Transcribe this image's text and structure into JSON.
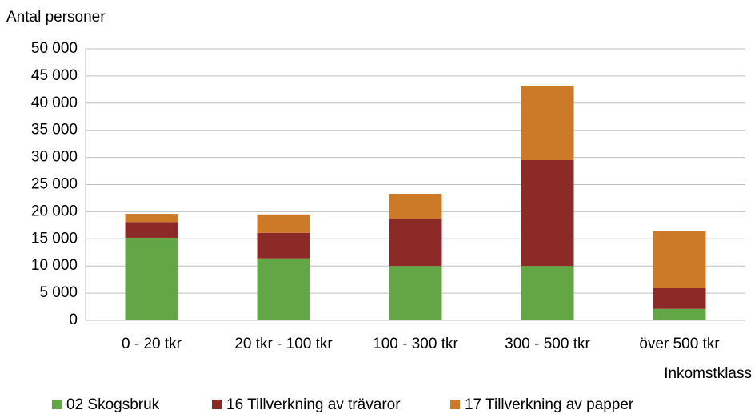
{
  "chart_data": {
    "type": "stacked_bar",
    "y_label": "Antal personer",
    "x_label": "Inkomstklass",
    "categories": [
      "0 - 20 tkr",
      "20 tkr - 100 tkr",
      "100 - 300 tkr",
      "300 - 500 tkr",
      "över 500 tkr"
    ],
    "series": [
      {
        "name": "02 Skogsbruk",
        "color": "#63a646",
        "values": [
          15200,
          11400,
          10000,
          10000,
          2100
        ]
      },
      {
        "name": "16 Tillverkning av trävaror",
        "color": "#8c2a28",
        "values": [
          2900,
          4700,
          8700,
          19500,
          3800
        ]
      },
      {
        "name": "17 Tillverkning av papper",
        "color": "#cc7a27",
        "values": [
          1500,
          3400,
          4600,
          13700,
          10600
        ]
      }
    ],
    "ylim": [
      0,
      50000
    ],
    "yticks": [
      0,
      {
        "value": 5000,
        "label": "5 000"
      },
      {
        "value": 10000,
        "label": "10 000"
      },
      {
        "value": 15000,
        "label": "15 000"
      },
      {
        "value": 20000,
        "label": "20 000"
      },
      {
        "value": 25000,
        "label": "25 000"
      },
      {
        "value": 30000,
        "label": "30 000"
      },
      {
        "value": 35000,
        "label": "35 000"
      },
      {
        "value": 40000,
        "label": "40 000"
      },
      {
        "value": 45000,
        "label": "45 000"
      },
      {
        "value": 50000,
        "label": "50 000"
      }
    ],
    "grid": true,
    "legend": "bottom"
  }
}
